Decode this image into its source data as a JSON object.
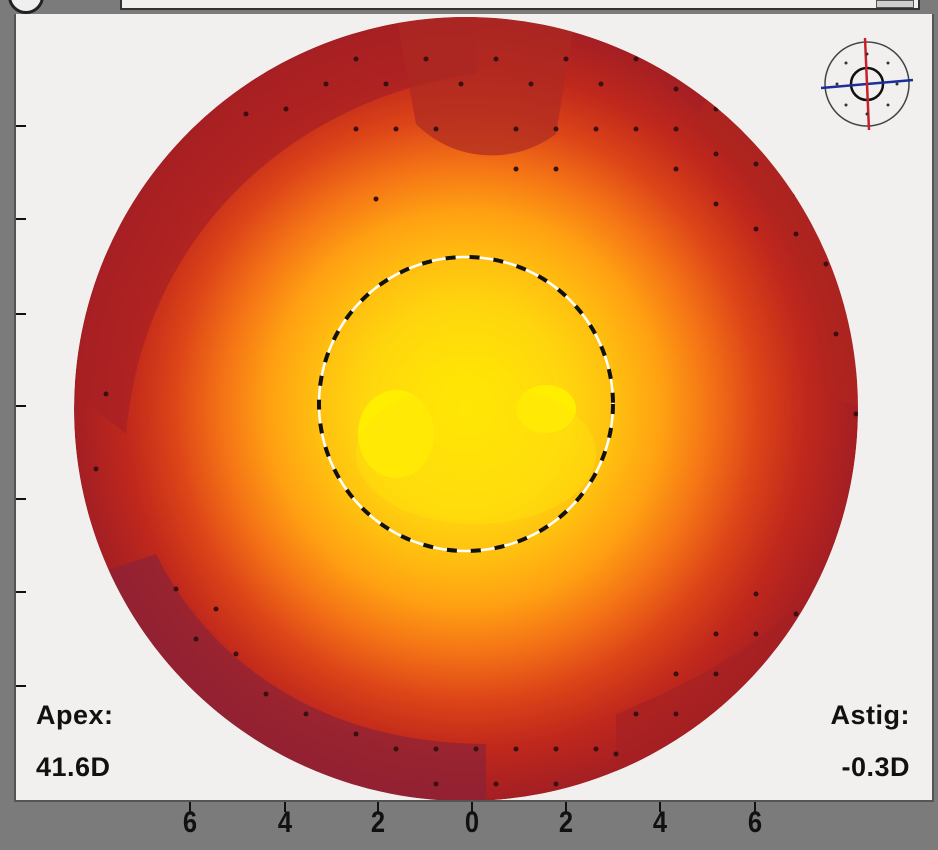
{
  "labels": {
    "apex_label": "Apex:",
    "apex_value": "41.6D",
    "astig_label": "Astig:",
    "astig_value": "-0.3D"
  },
  "axis": {
    "ticks": [
      "6",
      "4",
      "2",
      "0",
      "2",
      "4",
      "6"
    ]
  },
  "colors": {
    "panel_background": "#f2f0ee",
    "frame": "#7b7b7b",
    "map_outer": "#8a2a3a",
    "map_mid": "#e04a1c",
    "map_inner": "#ffd21a",
    "map_center": "#ffee00",
    "reticle_cross": "#1a2f9a",
    "reticle_axis": "#c8202a"
  },
  "icons": {
    "top_left": "circle-icon",
    "top_right": "fixation-reticle-icon"
  }
}
